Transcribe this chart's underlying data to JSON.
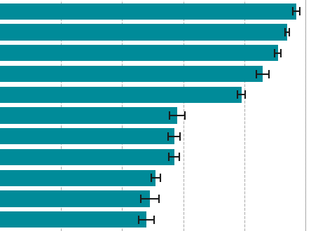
{
  "values": [
    97,
    94,
    91,
    86,
    79,
    58,
    57,
    57,
    51,
    49,
    48
  ],
  "errors": [
    1.2,
    0.7,
    1.0,
    2.0,
    1.2,
    2.5,
    2.0,
    1.8,
    1.5,
    3.0,
    2.5
  ],
  "bar_color": "#008B99",
  "error_color": "#1a1a1a",
  "background_color": "#ffffff",
  "grid_color": "#b0b0b0",
  "xlim": [
    0,
    100
  ],
  "grid_positions": [
    20,
    40,
    60,
    80,
    100
  ],
  "bar_height": 0.78,
  "figsize": [
    4.74,
    3.3
  ],
  "dpi": 100
}
